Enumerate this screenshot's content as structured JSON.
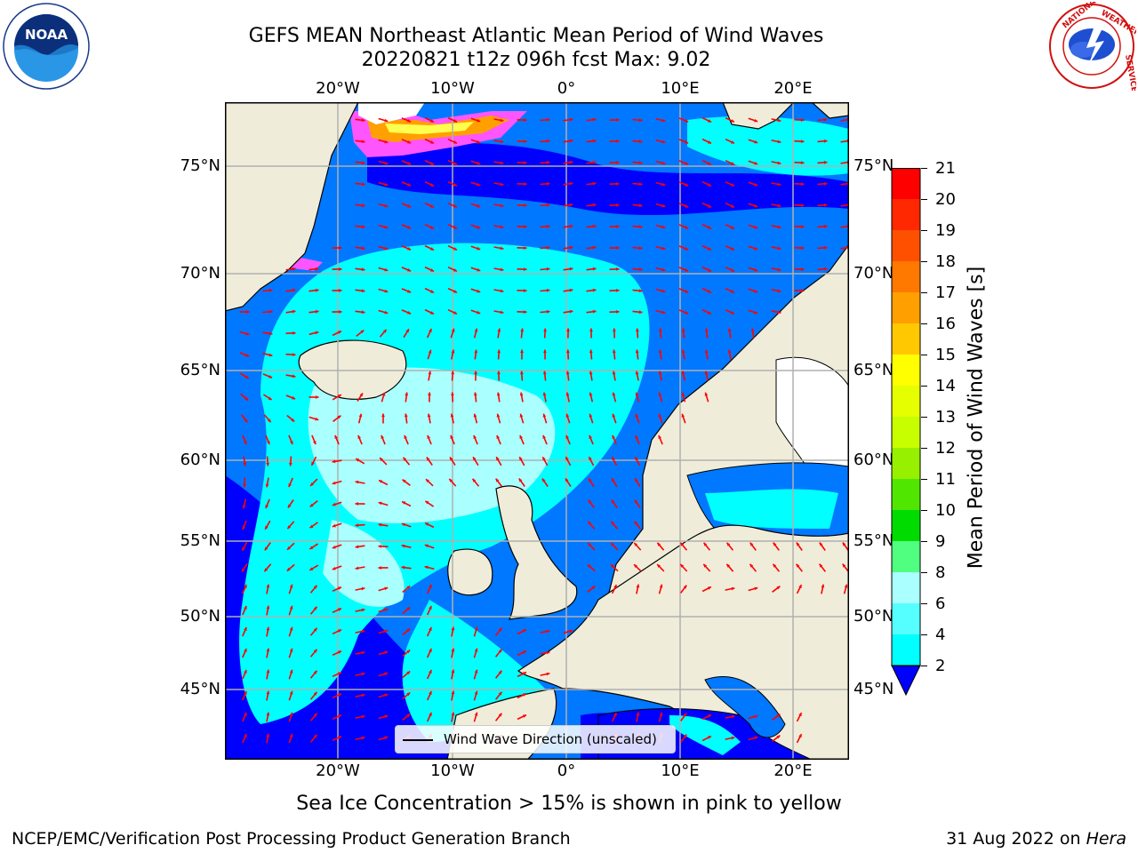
{
  "title": {
    "line1": "GEFS MEAN Northeast Atlantic Mean Period of Wind Waves",
    "line2": "20220821 t12z 096h fcst   Max: 9.02"
  },
  "logos": {
    "left": "NOAA",
    "left_ring_text": "NATIONAL OCEANIC AND ATMOSPHERIC ADMINISTRATION · U.S. DEPARTMENT OF COMMERCE",
    "right_ring_text": "NATIONAL WEATHER SERVICE"
  },
  "axes": {
    "lon_top": [
      "20°W",
      "10°W",
      "0°",
      "10°E",
      "20°E"
    ],
    "lon_bottom": [
      "20°W",
      "10°W",
      "0°",
      "10°E",
      "20°E"
    ],
    "lat_left": [
      "75°N",
      "70°N",
      "65°N",
      "60°N",
      "55°N",
      "50°N",
      "45°N"
    ],
    "lat_right": [
      "75°N",
      "70°N",
      "65°N",
      "60°N",
      "55°N",
      "50°N",
      "45°N"
    ]
  },
  "colorbar": {
    "title": "Mean Period of Wind Waves [s]",
    "ticks": [
      "21",
      "20",
      "19",
      "18",
      "17",
      "16",
      "15",
      "14",
      "13",
      "12",
      "11",
      "10",
      "9",
      "8",
      "6",
      "4",
      "2"
    ],
    "colors": [
      "#ff0000",
      "#ff2800",
      "#ff5000",
      "#ff7800",
      "#ffa000",
      "#ffc800",
      "#ffff00",
      "#e6ff00",
      "#c8ff00",
      "#96f000",
      "#50e600",
      "#00dc00",
      "#50ff80",
      "#aaffff",
      "#55ffff",
      "#00ffff",
      "#0078ff"
    ],
    "extend_color": "#0000ff"
  },
  "legend": {
    "label": "Wind Wave Direction (unscaled)"
  },
  "note": "Sea Ice Concentration > 15% is shown in pink to yellow",
  "footer": {
    "left": "NCEP/EMC/Verification Post Processing Product Generation Branch",
    "right_date": "31 Aug 2022 on ",
    "right_host": "Hera"
  },
  "palette": {
    "land": "#efedda",
    "deep_blue": "#0000ff",
    "mid_blue": "#0078ff",
    "cyan": "#00ffff",
    "light_cyan": "#aaffff",
    "arrow": "#ff0000",
    "ice_pink": "#ff55ff",
    "ice_orange": "#ffa000",
    "ice_yellow": "#ffff50"
  }
}
